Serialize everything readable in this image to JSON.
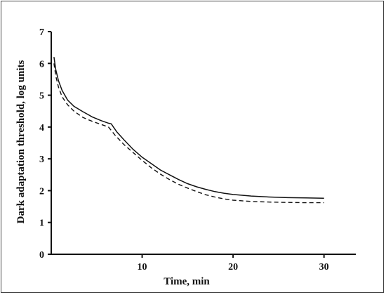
{
  "chart_data": {
    "type": "line",
    "title": "",
    "xlabel": "Time, min",
    "ylabel": "Dark adaptation threshold, log units",
    "xlim": [
      0,
      33.5
    ],
    "ylim": [
      0,
      7
    ],
    "x_ticks": [
      10,
      20,
      30
    ],
    "x_tick_labels": [
      "10",
      "20",
      "30"
    ],
    "y_ticks": [
      0,
      1,
      2,
      3,
      4,
      5,
      6,
      7
    ],
    "y_tick_labels": [
      "0",
      "1",
      "2",
      "3",
      "4",
      "5",
      "6",
      "7"
    ],
    "grid": false,
    "legend": "none",
    "series": [
      {
        "style": "solid",
        "color": "#111111",
        "x": [
          0.3,
          0.5,
          0.8,
          1.2,
          1.8,
          2.5,
          3.5,
          4.5,
          5.5,
          6.3,
          6.6,
          7.2,
          8.0,
          9.0,
          10.0,
          11.0,
          12.0,
          13.0,
          14.0,
          15.0,
          16.0,
          17.0,
          18.0,
          19.0,
          20.0,
          22.0,
          24.0,
          26.0,
          28.0,
          30.0
        ],
        "y": [
          6.2,
          5.8,
          5.45,
          5.15,
          4.85,
          4.65,
          4.48,
          4.32,
          4.2,
          4.12,
          4.1,
          3.85,
          3.6,
          3.3,
          3.05,
          2.85,
          2.65,
          2.5,
          2.35,
          2.22,
          2.12,
          2.04,
          1.97,
          1.92,
          1.88,
          1.83,
          1.8,
          1.78,
          1.77,
          1.76
        ]
      },
      {
        "style": "dashed",
        "color": "#111111",
        "x": [
          0.3,
          0.5,
          0.8,
          1.2,
          1.8,
          2.5,
          3.5,
          4.5,
          5.5,
          6.3,
          7.0,
          8.0,
          9.0,
          10.0,
          11.0,
          12.0,
          13.0,
          14.0,
          15.0,
          16.0,
          17.0,
          18.0,
          19.0,
          20.0,
          22.0,
          24.0,
          26.0,
          28.0,
          30.0
        ],
        "y": [
          6.0,
          5.6,
          5.25,
          4.95,
          4.7,
          4.5,
          4.3,
          4.18,
          4.08,
          4.0,
          3.75,
          3.45,
          3.2,
          2.95,
          2.72,
          2.52,
          2.35,
          2.2,
          2.08,
          1.97,
          1.87,
          1.8,
          1.74,
          1.7,
          1.66,
          1.64,
          1.63,
          1.62,
          1.62
        ]
      }
    ]
  }
}
